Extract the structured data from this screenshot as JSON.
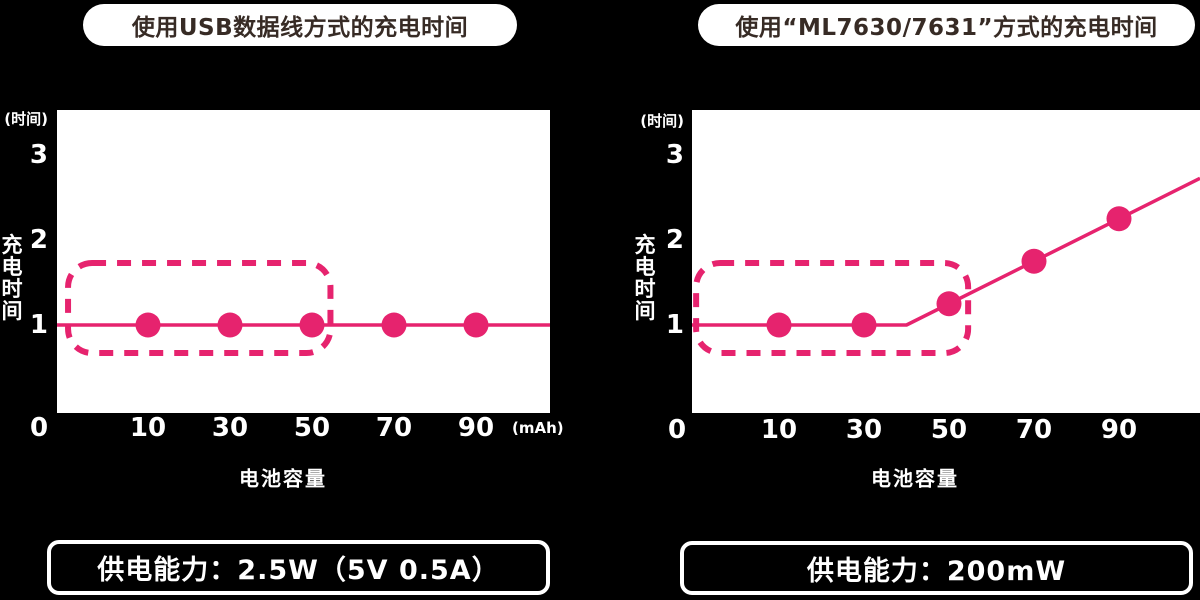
{
  "colors": {
    "background": "#000000",
    "plot_background": "#FFFFFF",
    "accent_pink": "#E6236E",
    "title_text": "#372B25",
    "axis_text": "#FFFFFF"
  },
  "chart_data": [
    {
      "type": "line",
      "title": "使用USB数据线方式的充电时间",
      "footer": "供电能力：2.5W（5V 0.5A）",
      "xlabel": "电池容量",
      "ylabel": "充电时间",
      "x_unit": "(mAh)",
      "y_unit": "(时间)",
      "x_ticks": [
        0,
        10,
        30,
        50,
        70,
        90
      ],
      "y_ticks": [
        0,
        1,
        2,
        3
      ],
      "xlim": [
        0,
        110
      ],
      "ylim": [
        0,
        3.6
      ],
      "grid": false,
      "legend": false,
      "series": [
        {
          "points": [
            [
              10,
              1
            ],
            [
              30,
              1
            ],
            [
              50,
              1
            ],
            [
              70,
              1
            ],
            [
              90,
              1
            ]
          ],
          "line_nodes": [
            [
              10,
              1
            ],
            [
              90,
              1
            ]
          ],
          "extends_to_plot_edges": true
        }
      ],
      "highlight_box": {
        "style": "dashed-rounded",
        "x_from": -9.5,
        "x_to": 54.5,
        "y_from": 0.67,
        "y_to": 1.73
      }
    },
    {
      "type": "line",
      "title": "使用“ML7630/7631”方式的充电时间",
      "footer": "供电能力：200mW",
      "xlabel": "电池容量",
      "ylabel": "充电时间",
      "x_unit": "",
      "y_unit": "(时间)",
      "x_ticks": [
        0,
        10,
        30,
        50,
        70,
        90
      ],
      "y_ticks": [
        0,
        1,
        2,
        3
      ],
      "xlim": [
        0,
        110
      ],
      "ylim": [
        0,
        3.6
      ],
      "grid": false,
      "legend": false,
      "series": [
        {
          "points": [
            [
              10,
              1
            ],
            [
              30,
              1
            ],
            [
              50,
              1.25
            ],
            [
              70,
              1.75
            ],
            [
              90,
              2.25
            ]
          ],
          "line_nodes": [
            [
              10,
              1
            ],
            [
              40,
              1
            ],
            [
              90,
              2.25
            ]
          ],
          "extends_to_plot_edges": true
        }
      ],
      "highlight_box": {
        "style": "dashed-rounded",
        "x_from": -9.5,
        "x_to": 54.5,
        "y_from": 0.67,
        "y_to": 1.73
      }
    }
  ]
}
